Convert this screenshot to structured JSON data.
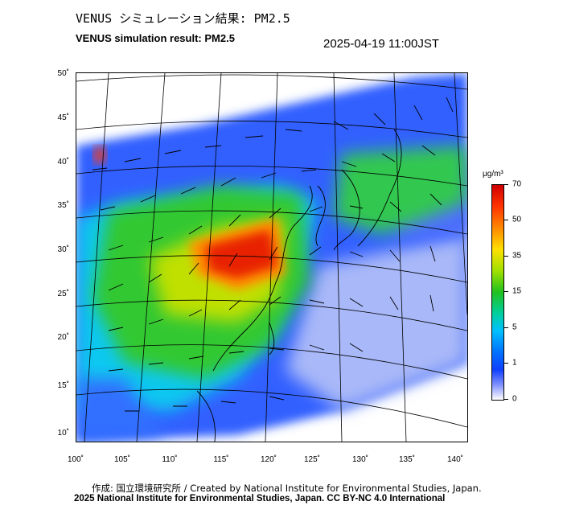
{
  "header": {
    "title_jp": "VENUS シミュレーション結果: PM2.5",
    "title_en": "VENUS simulation result: PM2.5",
    "timestamp": "2025-04-19 11:00JST"
  },
  "map": {
    "lat_labels": [
      "50˚",
      "45˚",
      "40˚",
      "35˚",
      "30˚",
      "25˚",
      "20˚",
      "15˚",
      "10˚"
    ],
    "lon_labels": [
      "100˚",
      "105˚",
      "110˚",
      "115˚",
      "120˚",
      "125˚",
      "130˚",
      "135˚",
      "140˚"
    ]
  },
  "colorbar": {
    "unit": "μg/m³",
    "ticks": [
      "70",
      "50",
      "35",
      "15",
      "5",
      "1",
      "0"
    ],
    "colors": [
      "#d00000",
      "#ff9900",
      "#ffe000",
      "#20c020",
      "#00c0ff",
      "#1040ff",
      "#ffffff"
    ]
  },
  "footer": {
    "credit_line1": "作成: 国立環境研究所 / Created by National Institute for Environmental Studies, Japan.",
    "credit_line2": "2025 National Institute for Environmental Studies, Japan. CC BY-NC 4.0 International"
  }
}
